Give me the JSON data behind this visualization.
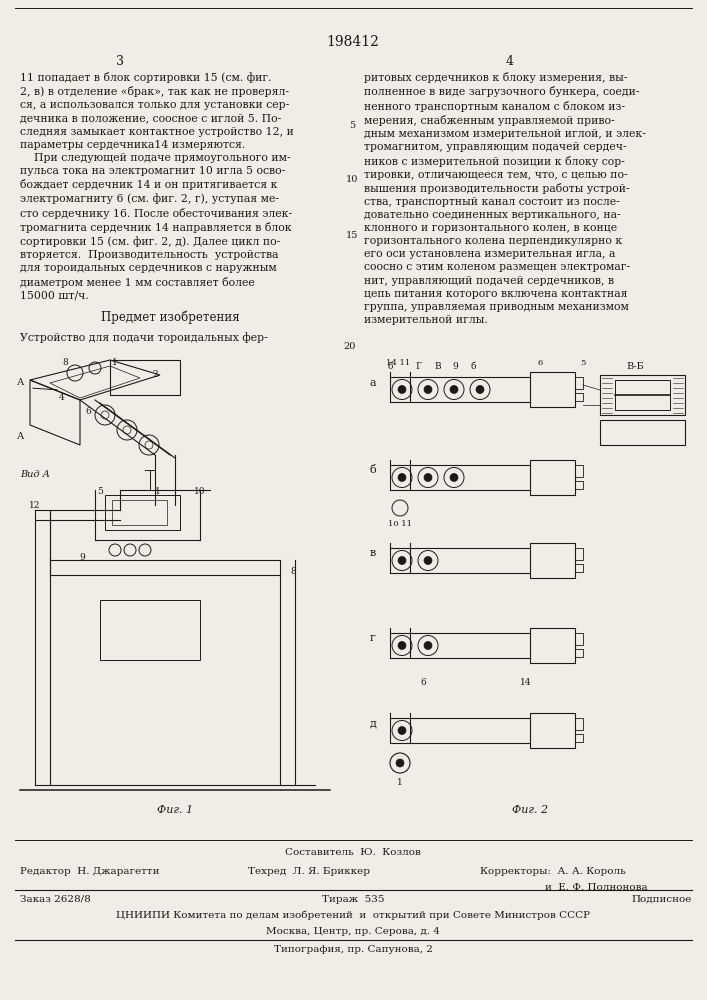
{
  "patent_number": "198412",
  "page_left": "3",
  "page_right": "4",
  "background_color": "#f0ede6",
  "text_color": "#1a1a1a",
  "left_col_text": "11 попадает в блок сортировки 15 (см. фиг.\n2, в) в отделение «брак», так как не проверял-\nся, а использовался только для установки сер-\nдечника в положение, соосное с иглой 5. По-\nследняя замыкает контактное устройство 12, и\nпараметры сердечника14 измеряются.\n    При следующей подаче прямоугольного им-\nпульса тока на электромагнит 10 игла 5 осво-\nбождает сердечник 14 и он притягивается к\nэлектромагниту 6 (см. фиг. 2, г), уступая ме-\nсто сердечнику 16. После обесточивания элек-\nтромагнита сердечник 14 направляется в блок\nсортировки 15 (см. фиг. 2, д). Далее цикл по-\nвторяется.  Производительность  устройства\nдля тороидальных сердечников с наружным\nдиаметром менее 1 мм составляет более\n15000 шт/ч.",
  "subject_header": "Предмет изобретения",
  "subject_text": "Устройство для подачи тороидальных фер-  20",
  "right_col_text": "ритовых сердечников к блоку измерения, вы-\nполненное в виде загрузочного бункера, соеди-\nненного транспортным каналом с блоком из-\nмерения, снабженным управляемой приво-\nдным механизмом измерительной иглой, и элек-\nтромагнитом, управляющим подачей сердеч-\nников с измерительной позиции к блоку сор-\nтировки, отличающееся тем, что, с целью по-\nвышения производительности работы устрой-\nства, транспортный канал состоит из после-\nдовательно соединенных вертикального, на-\nклонного и горизонтального колен, в конце\nгоризонтального колена перпендикулярно к\nего оси установлена измерительная игла, а\nсоосно с этим коленом размещен электромаг-\nнит, управляющий подачей сердечников, в\nцепь питания которого включена контактная\nгруппа, управляемая приводным механизмом\nизмерительной иглы.",
  "bottom_composer_label": "Составитель Ю.  Козлов",
  "bottom_editor": "Редактор  Н. Джарагетти",
  "bottom_tech": "Техред  Л. Я. Бриккер",
  "bottom_correctors_label": "Корректоры:  А. А. Король",
  "bottom_correctors2": "и  Е. Ф. Полнонова",
  "bottom_order": "Заказ 2628/8",
  "bottom_tirazh": "Тираж  535",
  "bottom_podpisnoe": "Подписное",
  "bottom_org": "ЦНИИПИ Комитета по делам изобретений  и  открытий при Совете Министров СССР",
  "bottom_address": "Москва, Центр, пр. Серова, д. 4",
  "bottom_typography": "Типография, пр. Сапунова, 2"
}
